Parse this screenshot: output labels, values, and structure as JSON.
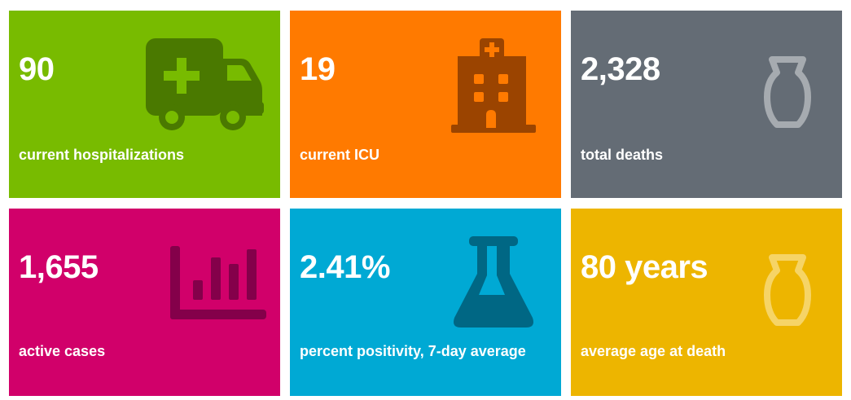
{
  "tiles": [
    {
      "value": "90",
      "label": "current hospitalizations",
      "icon": "ambulance-icon",
      "bg": "#78bb00",
      "icon_color": "#4a7900"
    },
    {
      "value": "19",
      "label": "current ICU",
      "icon": "hospital-icon",
      "bg": "#ff7a00",
      "icon_color": "#9b4400"
    },
    {
      "value": "2,328",
      "label": "total deaths",
      "icon": "urn-icon",
      "bg": "#646c75",
      "icon_color": "#a6abb0"
    },
    {
      "value": "1,655",
      "label": "active cases",
      "icon": "bar-chart-icon",
      "bg": "#d1006a",
      "icon_color": "#84004a"
    },
    {
      "value": "2.41%",
      "label": "percent positivity, 7-day average",
      "icon": "flask-icon",
      "bg": "#00a9d4",
      "icon_color": "#006784"
    },
    {
      "value": "80 years",
      "label": "average age at death",
      "icon": "urn-icon",
      "bg": "#edb500",
      "icon_color": "#f6d466"
    }
  ]
}
